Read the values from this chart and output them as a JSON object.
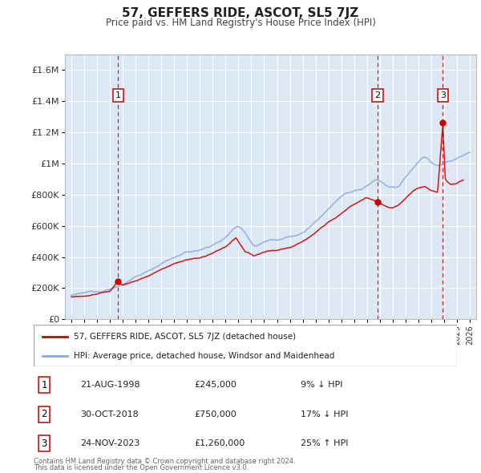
{
  "title": "57, GEFFERS RIDE, ASCOT, SL5 7JZ",
  "subtitle": "Price paid vs. HM Land Registry's House Price Index (HPI)",
  "ylabel_ticks": [
    "£0",
    "£200K",
    "£400K",
    "£600K",
    "£800K",
    "£1M",
    "£1.2M",
    "£1.4M",
    "£1.6M"
  ],
  "ytick_values": [
    0,
    200000,
    400000,
    600000,
    800000,
    1000000,
    1200000,
    1400000,
    1600000
  ],
  "ylim": [
    0,
    1700000
  ],
  "xlim_start": 1994.5,
  "xlim_end": 2026.5,
  "sale_color": "#cc0000",
  "hpi_color": "#88aadd",
  "plot_bg": "#dde8f5",
  "sale_points": [
    {
      "year": 1998.64,
      "value": 245000,
      "label": "1"
    },
    {
      "year": 2018.83,
      "value": 750000,
      "label": "2"
    },
    {
      "year": 2023.9,
      "value": 1260000,
      "label": "3"
    }
  ],
  "vline_years": [
    1998.64,
    2018.83,
    2023.9
  ],
  "legend_sale_label": "57, GEFFERS RIDE, ASCOT, SL5 7JZ (detached house)",
  "legend_hpi_label": "HPI: Average price, detached house, Windsor and Maidenhead",
  "table_rows": [
    {
      "num": "1",
      "date": "21-AUG-1998",
      "price": "£245,000",
      "hpi": "9% ↓ HPI"
    },
    {
      "num": "2",
      "date": "30-OCT-2018",
      "price": "£750,000",
      "hpi": "17% ↓ HPI"
    },
    {
      "num": "3",
      "date": "24-NOV-2023",
      "price": "£1,260,000",
      "hpi": "25% ↑ HPI"
    }
  ],
  "footnote1": "Contains HM Land Registry data © Crown copyright and database right 2024.",
  "footnote2": "This data is licensed under the Open Government Licence v3.0."
}
